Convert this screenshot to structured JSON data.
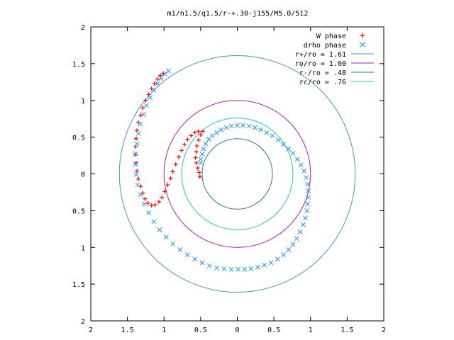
{
  "chart_data": {
    "type": "scatter",
    "title": "m1/n1.5/q1.5/r-+.30-j155/M5.0/512",
    "xlim": [
      -2,
      2
    ],
    "ylim": [
      -2,
      2
    ],
    "x_ticks": [
      {
        "value": -2,
        "label": "2"
      },
      {
        "value": -1.5,
        "label": "1.5"
      },
      {
        "value": -1,
        "label": "1"
      },
      {
        "value": -0.5,
        "label": "0.5"
      },
      {
        "value": 0,
        "label": "0"
      },
      {
        "value": 0.5,
        "label": "0.5"
      },
      {
        "value": 1,
        "label": "1"
      },
      {
        "value": 1.5,
        "label": "1.5"
      },
      {
        "value": 2,
        "label": "2"
      }
    ],
    "y_ticks": [
      {
        "value": 2,
        "label": "2"
      },
      {
        "value": 1.5,
        "label": "1.5"
      },
      {
        "value": 1,
        "label": "1"
      },
      {
        "value": 0.5,
        "label": "0.5"
      },
      {
        "value": 0,
        "label": "0"
      },
      {
        "value": -0.5,
        "label": "0.5"
      },
      {
        "value": -1,
        "label": "1"
      },
      {
        "value": -1.5,
        "label": "1.5"
      },
      {
        "value": -2,
        "label": "2"
      }
    ],
    "grid": false,
    "legend_position": "top-right",
    "series": [
      {
        "name": "W phase",
        "marker": "plus",
        "color": "#ff0000",
        "points": [
          [
            -0.51,
            -0.04
          ],
          [
            -0.52,
            0.02
          ],
          [
            -0.54,
            0.08
          ],
          [
            -0.56,
            0.15
          ],
          [
            -0.57,
            0.22
          ],
          [
            -0.56,
            0.3
          ],
          [
            -0.55,
            0.38
          ],
          [
            -0.53,
            0.46
          ],
          [
            -0.5,
            0.53
          ],
          [
            -0.47,
            0.58
          ],
          [
            -0.53,
            0.58
          ],
          [
            -0.58,
            0.56
          ],
          [
            -0.63,
            0.52
          ],
          [
            -0.68,
            0.47
          ],
          [
            -0.72,
            0.4
          ],
          [
            -0.76,
            0.32
          ],
          [
            -0.8,
            0.23
          ],
          [
            -0.84,
            0.13
          ],
          [
            -0.88,
            0.03
          ],
          [
            -0.91,
            -0.06
          ],
          [
            -0.95,
            -0.15
          ],
          [
            -0.99,
            -0.24
          ],
          [
            -1.03,
            -0.32
          ],
          [
            -1.07,
            -0.38
          ],
          [
            -1.12,
            -0.42
          ],
          [
            -1.17,
            -0.43
          ],
          [
            -1.22,
            -0.4
          ],
          [
            -1.26,
            -0.34
          ],
          [
            -1.29,
            -0.26
          ],
          [
            -1.32,
            -0.17
          ],
          [
            -1.35,
            -0.07
          ],
          [
            -1.37,
            0.04
          ],
          [
            -1.38,
            0.15
          ],
          [
            -1.39,
            0.26
          ],
          [
            -1.39,
            0.37
          ],
          [
            -1.38,
            0.48
          ],
          [
            -1.37,
            0.59
          ],
          [
            -1.35,
            0.7
          ],
          [
            -1.32,
            0.8
          ],
          [
            -1.29,
            0.9
          ],
          [
            -1.25,
            1.0
          ],
          [
            -1.21,
            1.08
          ],
          [
            -1.17,
            1.16
          ],
          [
            -1.13,
            1.23
          ],
          [
            -1.09,
            1.29
          ],
          [
            -1.05,
            1.34
          ],
          [
            -1.01,
            1.37
          ]
        ]
      },
      {
        "name": "drho phase",
        "marker": "cross",
        "color": "#1e90ff",
        "points": [
          [
            -0.5,
            0.15
          ],
          [
            -0.5,
            0.2
          ],
          [
            -0.48,
            0.27
          ],
          [
            -0.46,
            0.34
          ],
          [
            -0.43,
            0.41
          ],
          [
            -0.39,
            0.47
          ],
          [
            -0.34,
            0.52
          ],
          [
            -0.28,
            0.56
          ],
          [
            -0.22,
            0.6
          ],
          [
            -0.15,
            0.63
          ],
          [
            -0.08,
            0.65
          ],
          [
            0.0,
            0.66
          ],
          [
            0.08,
            0.66
          ],
          [
            0.16,
            0.65
          ],
          [
            0.24,
            0.63
          ],
          [
            0.32,
            0.6
          ],
          [
            0.4,
            0.56
          ],
          [
            0.48,
            0.52
          ],
          [
            0.56,
            0.46
          ],
          [
            0.63,
            0.4
          ],
          [
            0.7,
            0.34
          ],
          [
            0.76,
            0.28
          ],
          [
            0.82,
            0.2
          ],
          [
            0.87,
            0.12
          ],
          [
            0.91,
            0.04
          ],
          [
            0.94,
            -0.05
          ],
          [
            0.96,
            -0.14
          ],
          [
            0.97,
            -0.23
          ],
          [
            0.97,
            -0.32
          ],
          [
            0.96,
            -0.41
          ],
          [
            0.95,
            -0.5
          ],
          [
            0.93,
            -0.6
          ],
          [
            0.9,
            -0.69
          ],
          [
            0.86,
            -0.79
          ],
          [
            0.81,
            -0.88
          ],
          [
            0.76,
            -0.96
          ],
          [
            0.7,
            -1.03
          ],
          [
            0.63,
            -1.1
          ],
          [
            0.55,
            -1.16
          ],
          [
            0.46,
            -1.21
          ],
          [
            0.37,
            -1.24
          ],
          [
            0.28,
            -1.27
          ],
          [
            0.19,
            -1.29
          ],
          [
            0.1,
            -1.3
          ],
          [
            0.01,
            -1.3
          ],
          [
            -0.08,
            -1.3
          ],
          [
            -0.18,
            -1.29
          ],
          [
            -0.28,
            -1.28
          ],
          [
            -0.38,
            -1.25
          ],
          [
            -0.48,
            -1.21
          ],
          [
            -0.58,
            -1.16
          ],
          [
            -0.68,
            -1.1
          ],
          [
            -0.78,
            -1.03
          ],
          [
            -0.88,
            -0.95
          ],
          [
            -0.97,
            -0.86
          ],
          [
            -1.06,
            -0.76
          ],
          [
            -1.14,
            -0.65
          ],
          [
            -1.21,
            -0.53
          ],
          [
            -1.27,
            -0.41
          ],
          [
            -1.32,
            -0.28
          ],
          [
            -1.36,
            -0.15
          ],
          [
            -1.38,
            -0.01
          ],
          [
            -1.39,
            0.13
          ],
          [
            -1.39,
            0.27
          ],
          [
            -1.37,
            0.41
          ],
          [
            -1.35,
            0.55
          ],
          [
            -1.32,
            0.68
          ],
          [
            -1.28,
            0.81
          ],
          [
            -1.24,
            0.93
          ],
          [
            -1.19,
            1.04
          ],
          [
            -1.14,
            1.14
          ],
          [
            -1.09,
            1.23
          ],
          [
            -1.04,
            1.3
          ],
          [
            -0.99,
            1.36
          ],
          [
            -0.94,
            1.4
          ]
        ]
      },
      {
        "name": "r+/ro = 1.61",
        "type": "circle",
        "radius": 1.61,
        "color": "#4a8fd4"
      },
      {
        "name": "ro/ro = 1.00",
        "type": "circle",
        "radius": 1.0,
        "color": "#a020c0"
      },
      {
        "name": "r-/ro = .48",
        "type": "circle",
        "radius": 0.48,
        "color": "#2f6fb0"
      },
      {
        "name": "rc/ro = .76",
        "type": "circle",
        "radius": 0.76,
        "color": "#20c8c8"
      }
    ]
  }
}
